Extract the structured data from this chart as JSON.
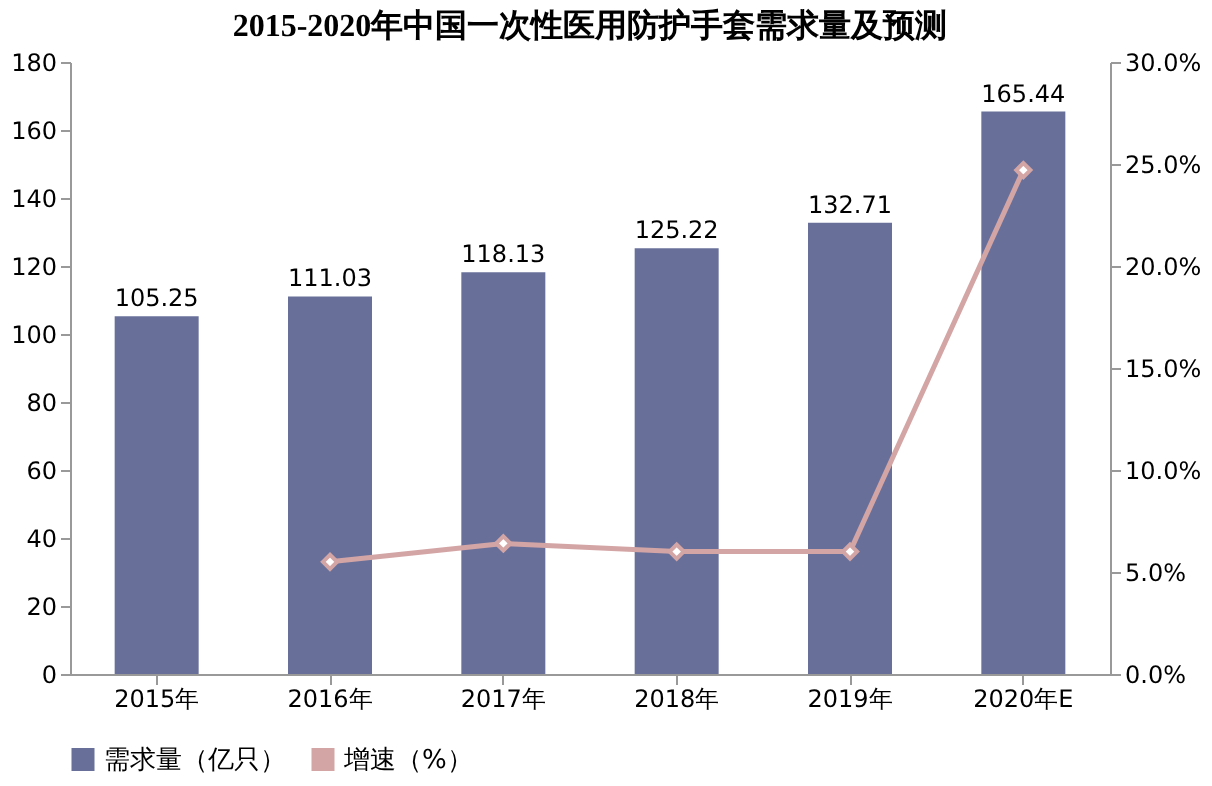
{
  "chart_data": {
    "type": "bar",
    "title": "2015-2020年中国一次性医用防护手套需求量及预测",
    "categories": [
      "2015年",
      "2016年",
      "2017年",
      "2018年",
      "2019年",
      "2020年E"
    ],
    "series": [
      {
        "name": "需求量（亿只）",
        "color": "#68709a",
        "values": [
          105.25,
          111.03,
          118.13,
          125.22,
          132.71,
          165.44
        ],
        "value_labels": [
          "105.25",
          "111.03",
          "118.13",
          "125.22",
          "132.71",
          "165.44"
        ]
      },
      {
        "name": "增速（%）",
        "type": "line",
        "axis": "y2",
        "color": "#d4a5a5",
        "marker": "diamond",
        "values": [
          null,
          5.5,
          6.4,
          6.0,
          6.0,
          24.7
        ]
      }
    ],
    "ylim": [
      0,
      180
    ],
    "yticks": [
      0,
      20,
      40,
      60,
      80,
      100,
      120,
      140,
      160,
      180
    ],
    "y2lim": [
      0,
      30
    ],
    "y2ticks": [
      {
        "value": 0,
        "label": "0.0%"
      },
      {
        "value": 5,
        "label": "5.0%"
      },
      {
        "value": 10,
        "label": "10.0%"
      },
      {
        "value": 15,
        "label": "15.0%"
      },
      {
        "value": 20,
        "label": "20.0%"
      },
      {
        "value": 25,
        "label": "25.0%"
      },
      {
        "value": 30,
        "label": "30.0%"
      }
    ],
    "grid": false,
    "legend": "bottom"
  }
}
